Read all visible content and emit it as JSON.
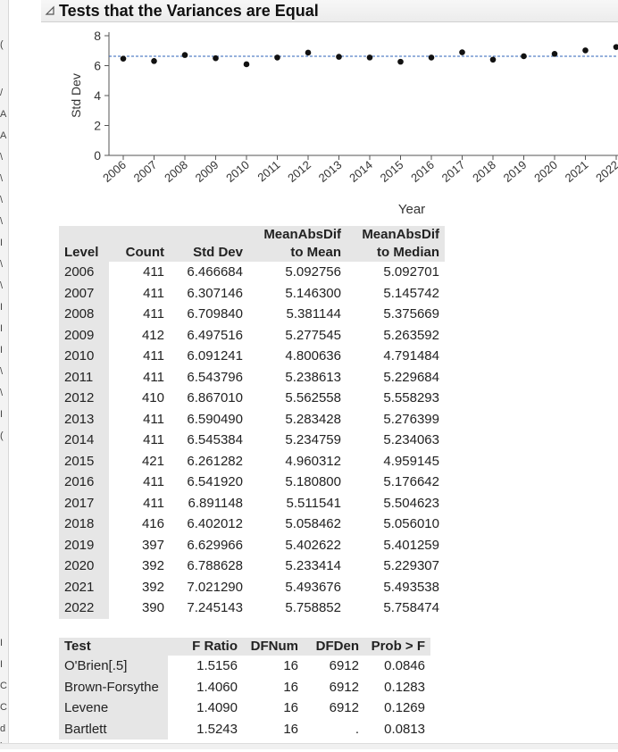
{
  "outline": {
    "title": "Tests that the Variances are Equal"
  },
  "chart_data": {
    "type": "scatter",
    "ylabel": "Std Dev",
    "xlabel": "Year",
    "ylim": [
      0,
      8
    ],
    "yticks": [
      0,
      2,
      4,
      6,
      8
    ],
    "grid": false,
    "reference_line": 6.63,
    "categories": [
      "2006",
      "2007",
      "2008",
      "2009",
      "2010",
      "2011",
      "2012",
      "2013",
      "2014",
      "2015",
      "2016",
      "2017",
      "2018",
      "2019",
      "2020",
      "2021",
      "2022"
    ],
    "values": [
      6.466684,
      6.307146,
      6.70984,
      6.497516,
      6.091241,
      6.543796,
      6.86701,
      6.59049,
      6.545384,
      6.261282,
      6.54192,
      6.891148,
      6.402012,
      6.629966,
      6.788628,
      7.02129,
      7.245143
    ],
    "colors": {
      "point": "#111111",
      "refline": "#2d63b8",
      "axis": "#555555"
    }
  },
  "table1": {
    "headers": [
      {
        "top": "",
        "bottom": "Level"
      },
      {
        "top": "",
        "bottom": "Count"
      },
      {
        "top": "",
        "bottom": "Std Dev"
      },
      {
        "top": "MeanAbsDif",
        "bottom": "to Mean"
      },
      {
        "top": "MeanAbsDif",
        "bottom": "to Median"
      }
    ],
    "rows": [
      [
        "2006",
        "411",
        "6.466684",
        "5.092756",
        "5.092701"
      ],
      [
        "2007",
        "411",
        "6.307146",
        "5.146300",
        "5.145742"
      ],
      [
        "2008",
        "411",
        "6.709840",
        "5.381144",
        "5.375669"
      ],
      [
        "2009",
        "412",
        "6.497516",
        "5.277545",
        "5.263592"
      ],
      [
        "2010",
        "411",
        "6.091241",
        "4.800636",
        "4.791484"
      ],
      [
        "2011",
        "411",
        "6.543796",
        "5.238613",
        "5.229684"
      ],
      [
        "2012",
        "410",
        "6.867010",
        "5.562558",
        "5.558293"
      ],
      [
        "2013",
        "411",
        "6.590490",
        "5.283428",
        "5.276399"
      ],
      [
        "2014",
        "411",
        "6.545384",
        "5.234759",
        "5.234063"
      ],
      [
        "2015",
        "421",
        "6.261282",
        "4.960312",
        "4.959145"
      ],
      [
        "2016",
        "411",
        "6.541920",
        "5.180800",
        "5.176642"
      ],
      [
        "2017",
        "411",
        "6.891148",
        "5.511541",
        "5.504623"
      ],
      [
        "2018",
        "416",
        "6.402012",
        "5.058462",
        "5.056010"
      ],
      [
        "2019",
        "397",
        "6.629966",
        "5.402622",
        "5.401259"
      ],
      [
        "2020",
        "392",
        "6.788628",
        "5.233414",
        "5.229307"
      ],
      [
        "2021",
        "392",
        "7.021290",
        "5.493676",
        "5.493538"
      ],
      [
        "2022",
        "390",
        "7.245143",
        "5.758852",
        "5.758474"
      ]
    ]
  },
  "table2": {
    "headers": [
      "Test",
      "F Ratio",
      "DFNum",
      "DFDen",
      "Prob > F"
    ],
    "rows": [
      [
        "O'Brien[.5]",
        "1.5156",
        "16",
        "6912",
        "0.0846"
      ],
      [
        "Brown-Forsythe",
        "1.4060",
        "16",
        "6912",
        "0.1283"
      ],
      [
        "Levene",
        "1.4090",
        "16",
        "6912",
        "0.1269"
      ],
      [
        "Bartlett",
        "1.5243",
        "16",
        ".",
        "0.0813"
      ]
    ]
  },
  "left_strip_glyphs": [
    "(",
    "/",
    "A",
    "A",
    "\\",
    "\\",
    "\\",
    "\\",
    "I",
    "\\",
    "\\",
    "I",
    "I",
    "I",
    "\\",
    "\\",
    "I",
    "(",
    "I",
    "I",
    "C",
    "C",
    "d",
    "b"
  ]
}
